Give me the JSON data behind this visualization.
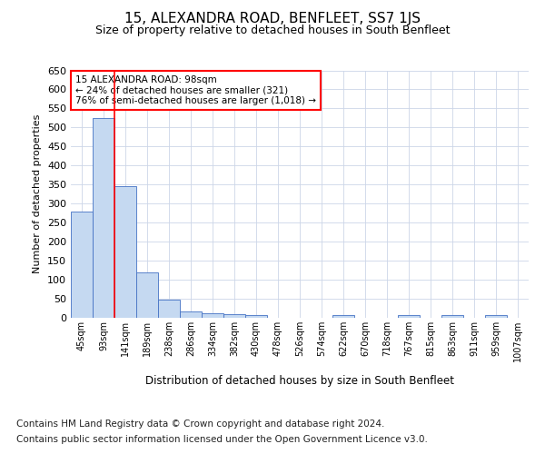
{
  "title": "15, ALEXANDRA ROAD, BENFLEET, SS7 1JS",
  "subtitle": "Size of property relative to detached houses in South Benfleet",
  "xlabel": "Distribution of detached houses by size in South Benfleet",
  "ylabel": "Number of detached properties",
  "bar_labels": [
    "45sqm",
    "93sqm",
    "141sqm",
    "189sqm",
    "238sqm",
    "286sqm",
    "334sqm",
    "382sqm",
    "430sqm",
    "478sqm",
    "526sqm",
    "574sqm",
    "622sqm",
    "670sqm",
    "718sqm",
    "767sqm",
    "815sqm",
    "863sqm",
    "911sqm",
    "959sqm",
    "1007sqm"
  ],
  "bar_values": [
    280,
    525,
    345,
    120,
    48,
    16,
    11,
    9,
    6,
    0,
    0,
    0,
    6,
    0,
    0,
    6,
    0,
    6,
    0,
    6,
    0
  ],
  "bar_color": "#c5d9f1",
  "bar_edge_color": "#4472c4",
  "annotation_text": "15 ALEXANDRA ROAD: 98sqm\n← 24% of detached houses are smaller (321)\n76% of semi-detached houses are larger (1,018) →",
  "annotation_box_color": "#ffffff",
  "annotation_box_edge_color": "#ff0000",
  "red_line_x": 1.5,
  "ylim": [
    0,
    650
  ],
  "yticks": [
    0,
    50,
    100,
    150,
    200,
    250,
    300,
    350,
    400,
    450,
    500,
    550,
    600,
    650
  ],
  "footer_line1": "Contains HM Land Registry data © Crown copyright and database right 2024.",
  "footer_line2": "Contains public sector information licensed under the Open Government Licence v3.0.",
  "title_fontsize": 11,
  "subtitle_fontsize": 9,
  "footer_fontsize": 7.5
}
